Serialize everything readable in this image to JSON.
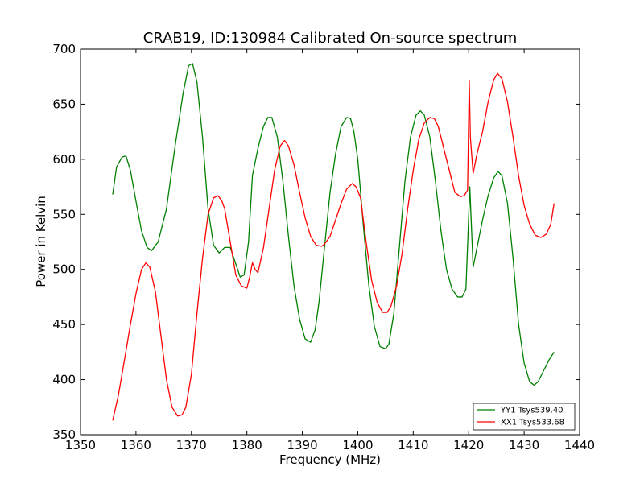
{
  "chart_data": {
    "type": "line",
    "title": "CRAB19, ID:130984 Calibrated On-source spectrum",
    "xlabel": "Frequency (MHz)",
    "ylabel": "Power in Kelvin",
    "xlim": [
      1350,
      1440
    ],
    "ylim": [
      350,
      700
    ],
    "xticks": [
      1350,
      1360,
      1370,
      1380,
      1390,
      1400,
      1410,
      1420,
      1430,
      1440
    ],
    "yticks": [
      350,
      400,
      450,
      500,
      550,
      600,
      650,
      700
    ],
    "grid": false,
    "legend_position": "lower-right",
    "series": [
      {
        "name": "YY1 Tsys539.40",
        "color": "#008000",
        "x": [
          1355.8,
          1356.5,
          1357.5,
          1358.2,
          1359.0,
          1360.0,
          1361.0,
          1362.0,
          1362.8,
          1364.0,
          1365.5,
          1367.0,
          1368.5,
          1369.5,
          1370.2,
          1371.0,
          1372.0,
          1373.0,
          1374.0,
          1375.0,
          1376.0,
          1377.0,
          1378.0,
          1378.8,
          1379.5,
          1380.3,
          1381.0,
          1382.0,
          1383.0,
          1383.8,
          1384.5,
          1385.5,
          1386.5,
          1387.5,
          1388.5,
          1389.5,
          1390.5,
          1391.5,
          1392.3,
          1393.0,
          1394.0,
          1395.0,
          1396.0,
          1397.0,
          1398.0,
          1398.7,
          1399.3,
          1400.0,
          1401.0,
          1402.0,
          1403.0,
          1404.0,
          1405.0,
          1405.6,
          1406.5,
          1407.5,
          1408.5,
          1409.5,
          1410.5,
          1411.3,
          1412.0,
          1413.0,
          1414.0,
          1415.0,
          1416.0,
          1417.0,
          1418.0,
          1418.8,
          1419.5,
          1420.2,
          1420.4,
          1420.8,
          1421.5,
          1422.5,
          1423.5,
          1424.5,
          1425.3,
          1426.0,
          1427.0,
          1428.0,
          1429.0,
          1430.0,
          1431.0,
          1431.8,
          1432.5,
          1433.5,
          1434.5,
          1435.4
        ],
        "y": [
          568,
          593,
          602,
          603,
          590,
          562,
          535,
          520,
          517,
          525,
          555,
          610,
          660,
          685,
          687,
          670,
          620,
          555,
          522,
          515,
          520,
          520,
          505,
          493,
          495,
          525,
          585,
          610,
          630,
          638,
          638,
          620,
          580,
          530,
          485,
          455,
          437,
          434,
          445,
          470,
          520,
          570,
          605,
          630,
          638,
          637,
          625,
          600,
          540,
          485,
          448,
          430,
          428,
          432,
          460,
          520,
          580,
          620,
          640,
          644,
          640,
          620,
          580,
          535,
          500,
          482,
          475,
          475,
          482,
          575,
          550,
          502,
          520,
          545,
          567,
          583,
          589,
          585,
          560,
          510,
          450,
          415,
          398,
          395,
          398,
          408,
          418,
          425
        ]
      },
      {
        "name": "XX1 Tsys533.68",
        "color": "#ff0000",
        "x": [
          1355.8,
          1356.8,
          1358.0,
          1359.0,
          1360.0,
          1361.0,
          1361.8,
          1362.5,
          1363.5,
          1364.5,
          1365.5,
          1366.5,
          1367.5,
          1368.3,
          1369.0,
          1370.0,
          1371.0,
          1372.0,
          1373.0,
          1374.0,
          1374.8,
          1375.5,
          1376.0,
          1377.0,
          1378.0,
          1379.0,
          1380.0,
          1380.5,
          1381.0,
          1381.5,
          1382.0,
          1383.0,
          1384.0,
          1385.0,
          1386.0,
          1386.8,
          1387.5,
          1388.5,
          1389.5,
          1390.5,
          1391.5,
          1392.5,
          1393.5,
          1394.0,
          1395.0,
          1396.0,
          1397.0,
          1398.0,
          1399.0,
          1399.7,
          1400.5,
          1401.5,
          1402.5,
          1403.5,
          1404.5,
          1405.3,
          1406.0,
          1407.0,
          1408.0,
          1409.0,
          1410.0,
          1411.0,
          1412.0,
          1413.0,
          1413.8,
          1414.5,
          1415.5,
          1416.5,
          1417.5,
          1418.5,
          1419.2,
          1419.8,
          1420.1,
          1420.3,
          1420.8,
          1421.5,
          1422.5,
          1423.5,
          1424.5,
          1425.2,
          1426.0,
          1427.0,
          1428.0,
          1429.0,
          1430.0,
          1431.0,
          1432.0,
          1433.0,
          1434.0,
          1434.8,
          1435.4
        ],
        "y": [
          363,
          385,
          420,
          450,
          478,
          500,
          506,
          502,
          480,
          440,
          400,
          375,
          367,
          368,
          375,
          405,
          460,
          510,
          550,
          565,
          567,
          562,
          555,
          525,
          495,
          485,
          483,
          493,
          506,
          500,
          497,
          520,
          555,
          590,
          612,
          617,
          612,
          595,
          570,
          547,
          530,
          522,
          521,
          523,
          530,
          545,
          560,
          573,
          578,
          575,
          565,
          525,
          490,
          470,
          461,
          461,
          467,
          485,
          515,
          555,
          590,
          618,
          633,
          638,
          637,
          630,
          610,
          590,
          570,
          566,
          567,
          572,
          672,
          620,
          587,
          605,
          625,
          652,
          672,
          678,
          673,
          652,
          620,
          585,
          558,
          541,
          531,
          529,
          532,
          541,
          560
        ]
      }
    ]
  }
}
